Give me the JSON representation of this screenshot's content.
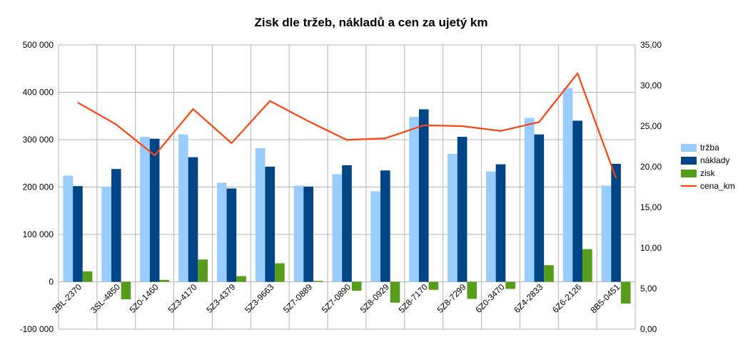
{
  "chart_data": {
    "type": "bar",
    "title": "Zisk dle tržeb, nákladů a cen za ujetý km",
    "categories": [
      "2BL-2370",
      "3SL-4850",
      "5Z0-1460",
      "5Z3-4170",
      "5Z3-4379",
      "5Z3-9663",
      "5Z7-0889",
      "5Z7-0890",
      "5Z8-0929",
      "5Z8-7170",
      "5Z8-7299",
      "6Z0-3470",
      "6Z4-2833",
      "6Z6-2126",
      "8B5-0451"
    ],
    "series": [
      {
        "name": "tržba",
        "type": "bar",
        "axis": "left",
        "color": "#99ccff",
        "values": [
          224000,
          201000,
          306000,
          311000,
          209000,
          282000,
          203000,
          227000,
          191000,
          348000,
          270000,
          233000,
          346000,
          409000,
          203000
        ]
      },
      {
        "name": "náklady",
        "type": "bar",
        "axis": "left",
        "color": "#004586",
        "values": [
          202000,
          238000,
          302000,
          263000,
          197000,
          243000,
          201000,
          246000,
          235000,
          364000,
          306000,
          248000,
          311000,
          340000,
          249000
        ]
      },
      {
        "name": "zisk",
        "type": "bar",
        "axis": "left",
        "color": "#579d1c",
        "values": [
          22000,
          -37000,
          4000,
          47000,
          12000,
          39000,
          2000,
          -19000,
          -44000,
          -17000,
          -36000,
          -15000,
          35000,
          69000,
          -46000
        ]
      },
      {
        "name": "cena_km",
        "type": "line",
        "axis": "right",
        "color": "#ff420e",
        "values": [
          27.9,
          25.2,
          21.4,
          27.1,
          22.9,
          28.1,
          25.6,
          23.3,
          23.5,
          25.1,
          25.0,
          24.4,
          25.5,
          31.5,
          18.6
        ]
      }
    ],
    "y_left": {
      "min": -100000,
      "max": 500000,
      "step": 100000,
      "tick_labels": [
        "-100 000",
        "0",
        "100 000",
        "200 000",
        "300 000",
        "400 000",
        "500 000"
      ]
    },
    "y_right": {
      "min": 0,
      "max": 35,
      "step": 5,
      "tick_labels": [
        "0,00",
        "5,00",
        "10,00",
        "15,00",
        "20,00",
        "25,00",
        "30,00",
        "35,00"
      ]
    },
    "grid": true,
    "legend_position": "right",
    "colors": {
      "axis": "#b3b3b3",
      "grid": "#b3b3b3"
    }
  }
}
